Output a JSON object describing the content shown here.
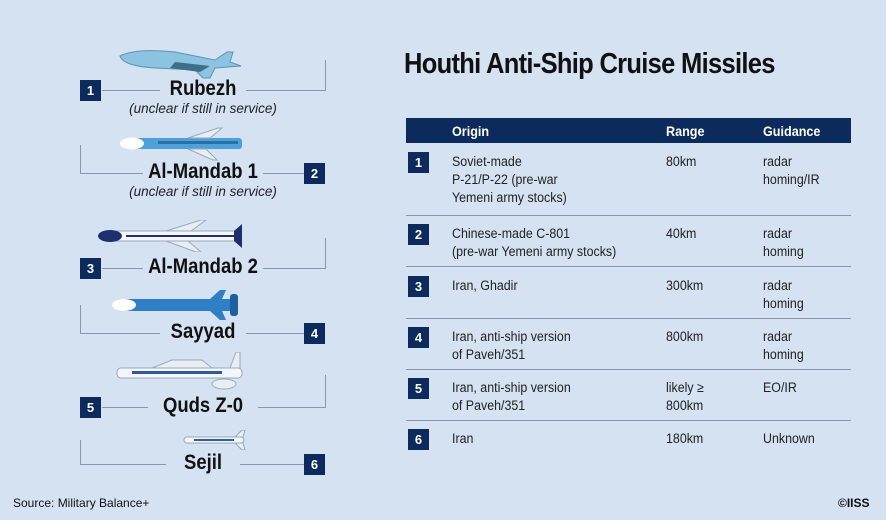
{
  "title": "Houthi Anti-Ship Cruise Missiles",
  "colors": {
    "background": "#d4e2f1",
    "navy": "#0d2a5c",
    "missile_blue": "#2f7fc4",
    "missile_light": "#8cc3e0"
  },
  "missiles": [
    {
      "number": "1",
      "name": "Rubezh",
      "note": "(unclear if still in service)"
    },
    {
      "number": "2",
      "name": "Al-Mandab 1",
      "note": "(unclear if still in service)"
    },
    {
      "number": "3",
      "name": "Al-Mandab 2"
    },
    {
      "number": "4",
      "name": "Sayyad"
    },
    {
      "number": "5",
      "name": "Quds Z-0"
    },
    {
      "number": "6",
      "name": "Sejil"
    }
  ],
  "table": {
    "headers": {
      "origin": "Origin",
      "range": "Range",
      "guidance": "Guidance"
    },
    "rows": [
      {
        "number": "1",
        "origin": "Soviet-made\nP-21/P-22 (pre-war\nYemeni army stocks)",
        "range": "80km",
        "guidance": "radar\nhoming/IR"
      },
      {
        "number": "2",
        "origin": "Chinese-made C-801\n(pre-war Yemeni army stocks)",
        "range": "40km",
        "guidance": "radar\nhoming"
      },
      {
        "number": "3",
        "origin": "Iran, Ghadir",
        "range": "300km",
        "guidance": "radar\nhoming"
      },
      {
        "number": "4",
        "origin": "Iran, anti-ship version\nof Paveh/351",
        "range": "800km",
        "guidance": "radar\nhoming"
      },
      {
        "number": "5",
        "origin": "Iran, anti-ship version\nof Paveh/351",
        "range": "likely ≥\n800km",
        "guidance": "EO/IR"
      },
      {
        "number": "6",
        "origin": "Iran",
        "range": "180km",
        "guidance": "Unknown"
      }
    ]
  },
  "source": "Source: Military Balance+",
  "copyright": "©IISS"
}
